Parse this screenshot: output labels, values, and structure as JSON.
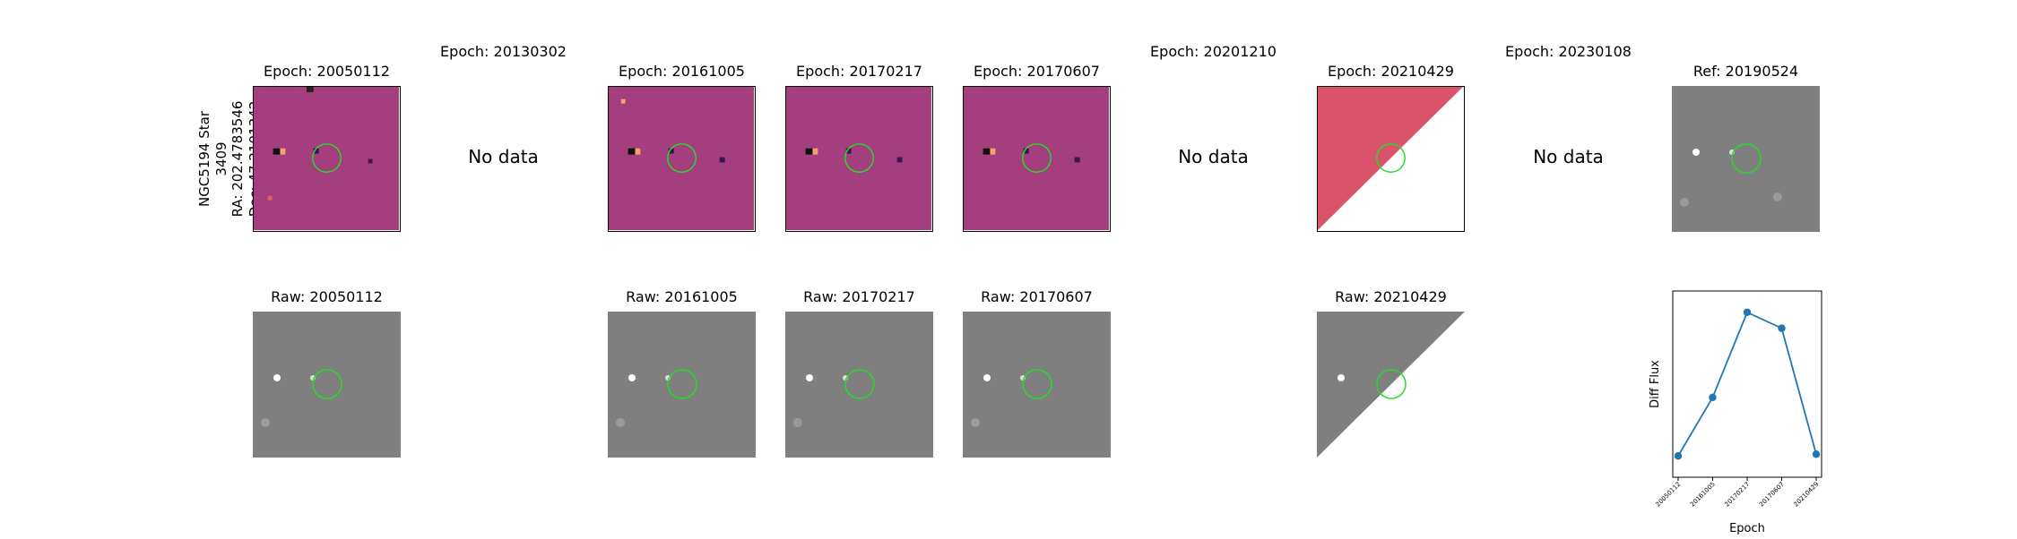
{
  "star": {
    "line1": "NGC5194 Star 3409",
    "line2": "RA: 202.4783546",
    "line3": "Dec: 47.2101342"
  },
  "diff_titles": {
    "c0": "Epoch: 20050112",
    "c1": "Epoch: 20130302",
    "c2": "Epoch: 20161005",
    "c3": "Epoch: 20170217",
    "c4": "Epoch: 20170607",
    "c5": "Epoch: 20201210",
    "c6": "Epoch: 20210429",
    "c7": "Epoch: 20230108",
    "c8": "Ref: 20190524"
  },
  "raw_titles": {
    "c0": "Raw: 20050112",
    "c2": "Raw: 20161005",
    "c3": "Raw: 20170217",
    "c4": "Raw: 20170607",
    "c6": "Raw: 20210429"
  },
  "no_data_text": "No data",
  "colors": {
    "diff_bg": "#a43e7e",
    "raw_bg": "#7f7f7f",
    "aperture": "#22dd22",
    "line": "#1f77b4"
  },
  "chart_data": {
    "type": "line",
    "x": [
      "20050112",
      "20161005",
      "20170217",
      "20170607",
      "20210429"
    ],
    "y": [
      0.12,
      0.45,
      0.93,
      0.84,
      0.13
    ],
    "ylim": [
      0.0,
      1.05
    ],
    "xlabel": "Epoch",
    "ylabel": "Diff Flux",
    "yticks_shown": false,
    "grid": false
  }
}
